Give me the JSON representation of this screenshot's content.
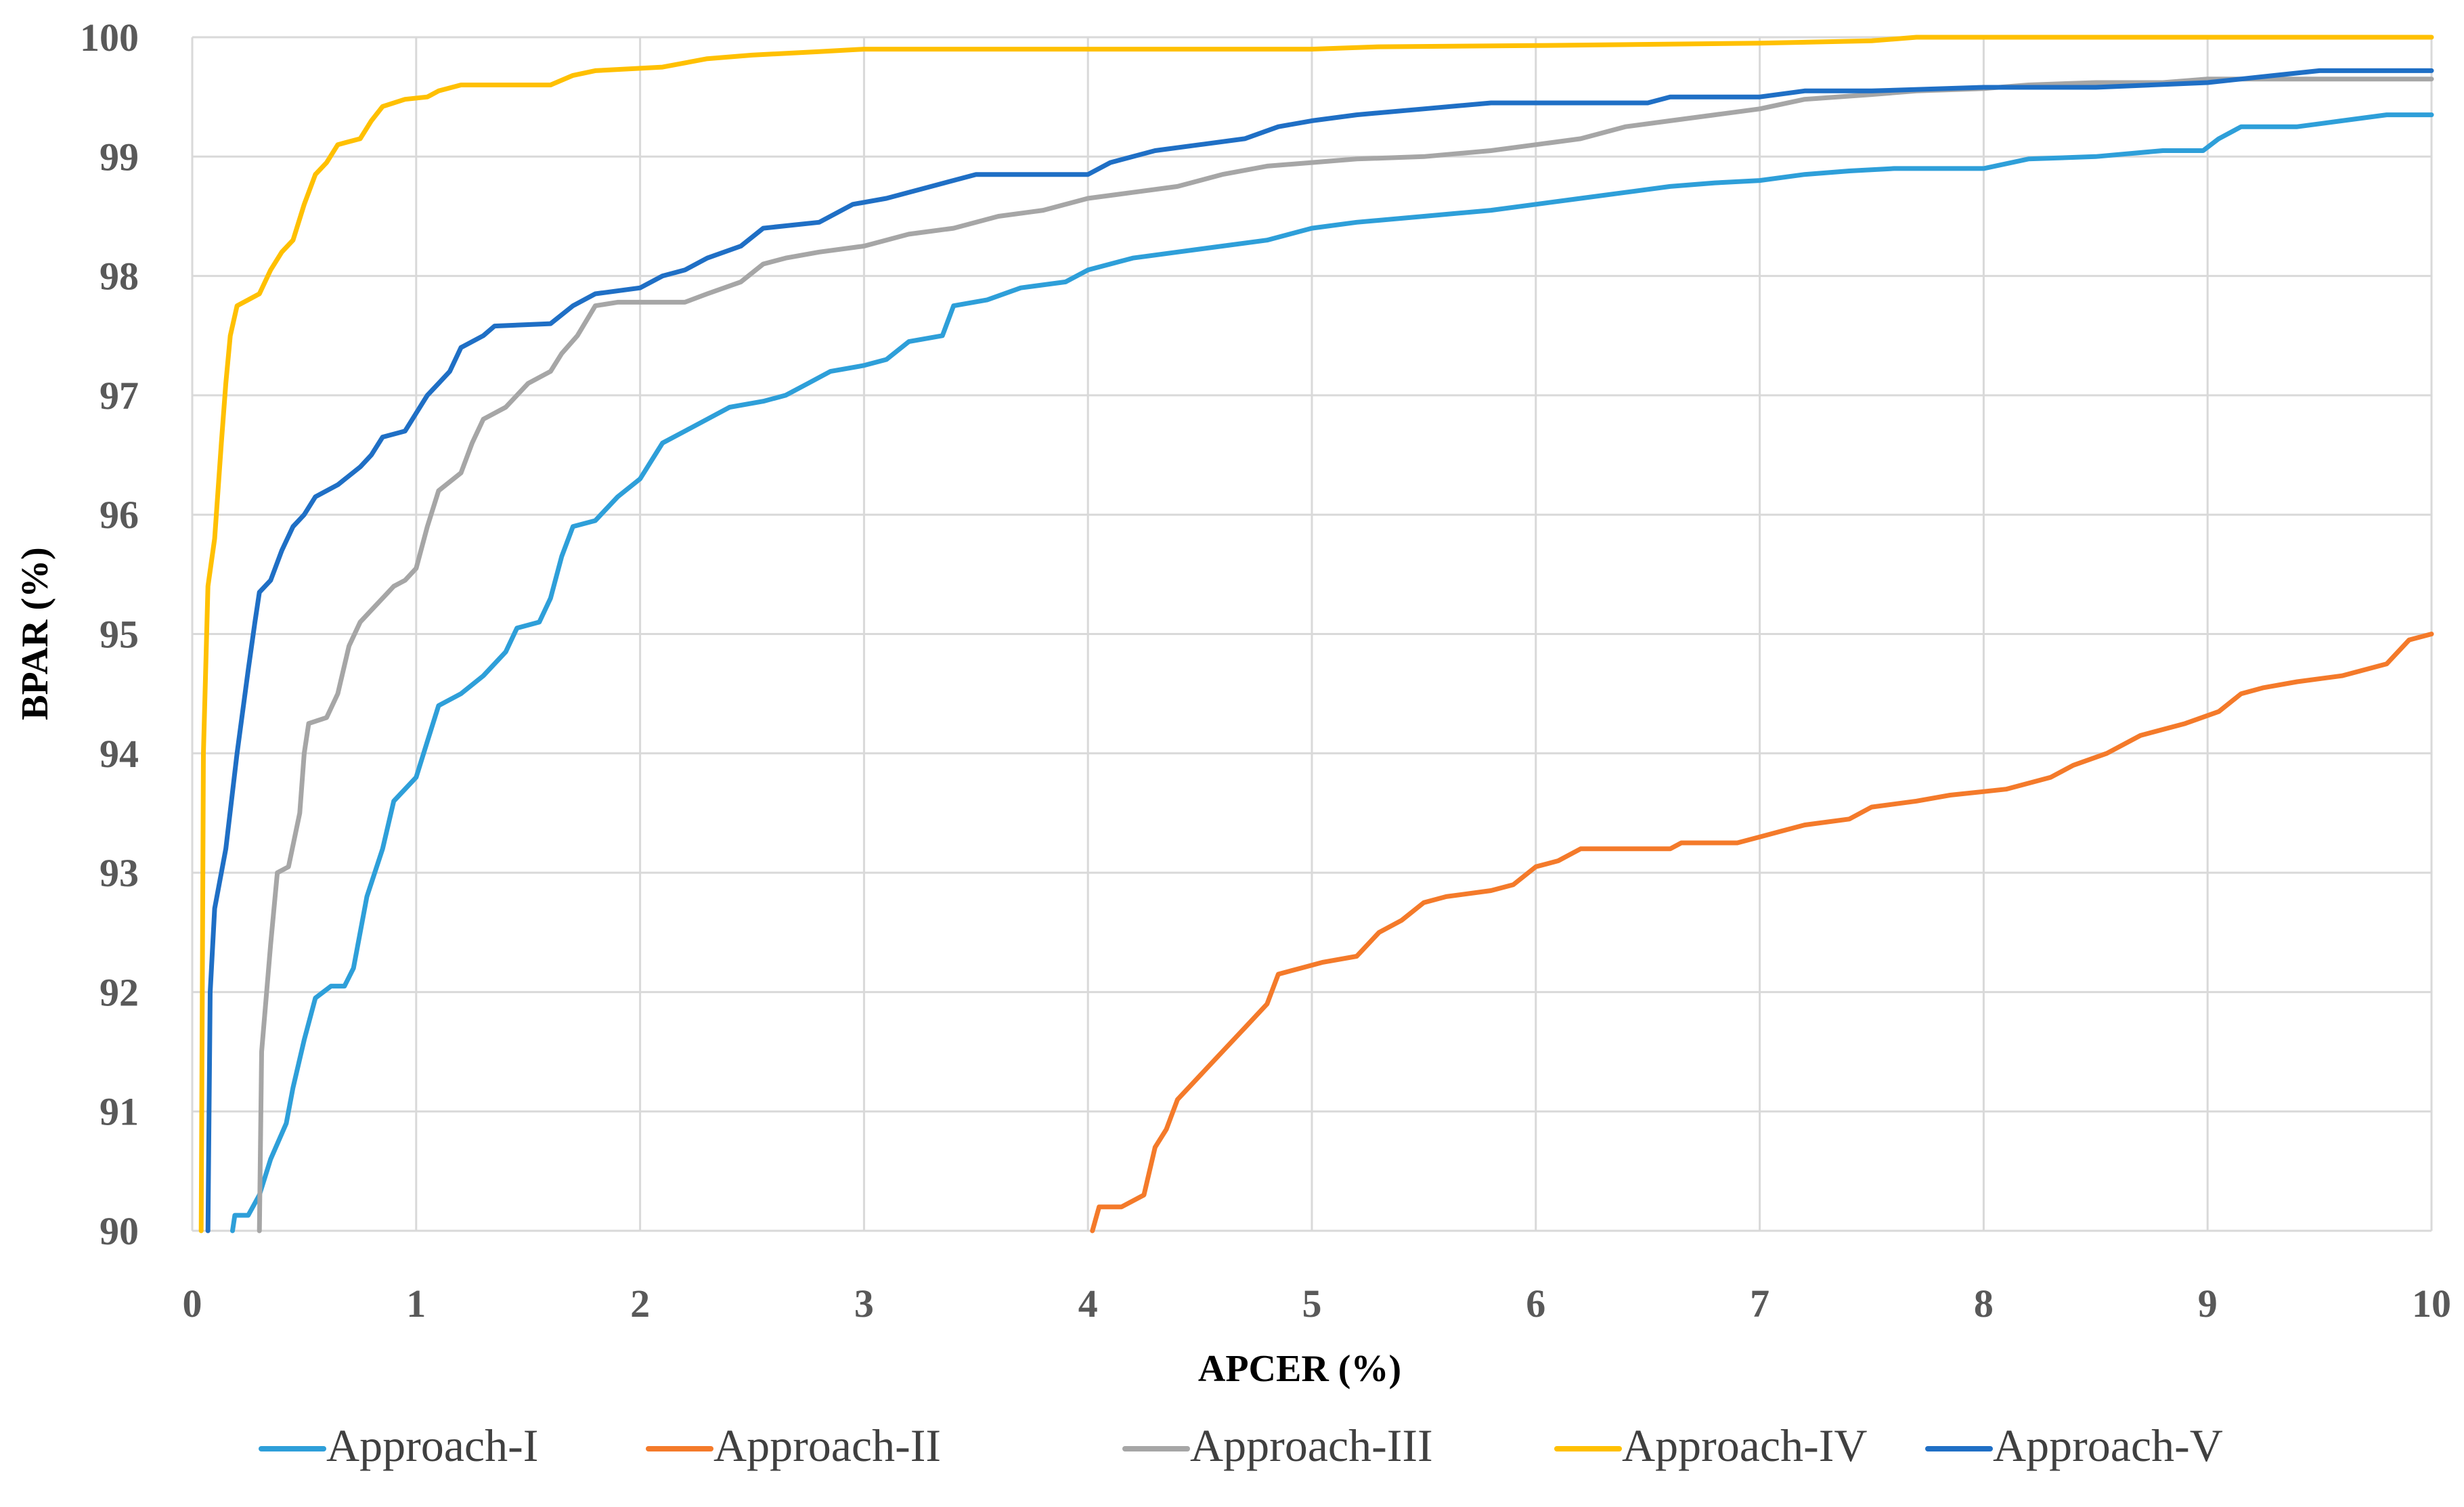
{
  "chart_data": {
    "type": "line",
    "title": "",
    "xlabel": "APCER (%)",
    "ylabel": "BPAR (%)",
    "xlim": [
      0,
      10
    ],
    "ylim": [
      90,
      100
    ],
    "grid": true,
    "legend_position": "bottom",
    "x_ticks": [
      "0",
      "1",
      "2",
      "3",
      "4",
      "5",
      "6",
      "7",
      "8",
      "9",
      "10"
    ],
    "y_ticks": [
      "90",
      "91",
      "92",
      "93",
      "94",
      "95",
      "96",
      "97",
      "98",
      "99",
      "100"
    ],
    "series": [
      {
        "name": "Approach-I",
        "color": "#2E9FD9",
        "points": [
          [
            0.18,
            90.0
          ],
          [
            0.19,
            90.13
          ],
          [
            0.25,
            90.13
          ],
          [
            0.3,
            90.3
          ],
          [
            0.35,
            90.6
          ],
          [
            0.42,
            90.9
          ],
          [
            0.45,
            91.2
          ],
          [
            0.5,
            91.6
          ],
          [
            0.55,
            91.95
          ],
          [
            0.62,
            92.05
          ],
          [
            0.68,
            92.05
          ],
          [
            0.72,
            92.2
          ],
          [
            0.78,
            92.8
          ],
          [
            0.85,
            93.2
          ],
          [
            0.9,
            93.6
          ],
          [
            0.95,
            93.7
          ],
          [
            1.0,
            93.8
          ],
          [
            1.05,
            94.1
          ],
          [
            1.1,
            94.4
          ],
          [
            1.2,
            94.5
          ],
          [
            1.3,
            94.65
          ],
          [
            1.4,
            94.85
          ],
          [
            1.45,
            95.05
          ],
          [
            1.55,
            95.1
          ],
          [
            1.6,
            95.3
          ],
          [
            1.65,
            95.65
          ],
          [
            1.7,
            95.9
          ],
          [
            1.8,
            95.95
          ],
          [
            1.9,
            96.15
          ],
          [
            2.0,
            96.3
          ],
          [
            2.05,
            96.45
          ],
          [
            2.1,
            96.6
          ],
          [
            2.2,
            96.7
          ],
          [
            2.3,
            96.8
          ],
          [
            2.4,
            96.9
          ],
          [
            2.55,
            96.95
          ],
          [
            2.65,
            97.0
          ],
          [
            2.75,
            97.1
          ],
          [
            2.85,
            97.2
          ],
          [
            3.0,
            97.25
          ],
          [
            3.1,
            97.3
          ],
          [
            3.2,
            97.45
          ],
          [
            3.35,
            97.5
          ],
          [
            3.4,
            97.75
          ],
          [
            3.55,
            97.8
          ],
          [
            3.7,
            97.9
          ],
          [
            3.9,
            97.95
          ],
          [
            4.0,
            98.05
          ],
          [
            4.2,
            98.15
          ],
          [
            4.4,
            98.2
          ],
          [
            4.6,
            98.25
          ],
          [
            4.8,
            98.3
          ],
          [
            5.0,
            98.4
          ],
          [
            5.2,
            98.45
          ],
          [
            5.5,
            98.5
          ],
          [
            5.8,
            98.55
          ],
          [
            6.0,
            98.6
          ],
          [
            6.2,
            98.65
          ],
          [
            6.4,
            98.7
          ],
          [
            6.6,
            98.75
          ],
          [
            6.8,
            98.78
          ],
          [
            7.0,
            98.8
          ],
          [
            7.2,
            98.85
          ],
          [
            7.4,
            98.88
          ],
          [
            7.6,
            98.9
          ],
          [
            8.0,
            98.9
          ],
          [
            8.2,
            98.98
          ],
          [
            8.5,
            99.0
          ],
          [
            8.8,
            99.05
          ],
          [
            8.98,
            99.05
          ],
          [
            9.05,
            99.15
          ],
          [
            9.15,
            99.25
          ],
          [
            9.4,
            99.25
          ],
          [
            9.6,
            99.3
          ],
          [
            9.8,
            99.35
          ],
          [
            10.0,
            99.35
          ]
        ]
      },
      {
        "name": "Approach-II",
        "color": "#F47A2A",
        "points": [
          [
            4.02,
            90.0
          ],
          [
            4.05,
            90.2
          ],
          [
            4.15,
            90.2
          ],
          [
            4.25,
            90.3
          ],
          [
            4.3,
            90.7
          ],
          [
            4.35,
            90.85
          ],
          [
            4.4,
            91.1
          ],
          [
            4.5,
            91.3
          ],
          [
            4.6,
            91.5
          ],
          [
            4.7,
            91.7
          ],
          [
            4.8,
            91.9
          ],
          [
            4.85,
            92.15
          ],
          [
            4.95,
            92.2
          ],
          [
            5.05,
            92.25
          ],
          [
            5.2,
            92.3
          ],
          [
            5.3,
            92.5
          ],
          [
            5.4,
            92.6
          ],
          [
            5.5,
            92.75
          ],
          [
            5.6,
            92.8
          ],
          [
            5.8,
            92.85
          ],
          [
            5.9,
            92.9
          ],
          [
            6.0,
            93.05
          ],
          [
            6.1,
            93.1
          ],
          [
            6.2,
            93.2
          ],
          [
            6.6,
            93.2
          ],
          [
            6.65,
            93.25
          ],
          [
            6.9,
            93.25
          ],
          [
            7.0,
            93.3
          ],
          [
            7.1,
            93.35
          ],
          [
            7.2,
            93.4
          ],
          [
            7.4,
            93.45
          ],
          [
            7.5,
            93.55
          ],
          [
            7.7,
            93.6
          ],
          [
            7.85,
            93.65
          ],
          [
            8.1,
            93.7
          ],
          [
            8.3,
            93.8
          ],
          [
            8.4,
            93.9
          ],
          [
            8.55,
            94.0
          ],
          [
            8.7,
            94.15
          ],
          [
            8.9,
            94.25
          ],
          [
            9.05,
            94.35
          ],
          [
            9.15,
            94.5
          ],
          [
            9.25,
            94.55
          ],
          [
            9.4,
            94.6
          ],
          [
            9.6,
            94.65
          ],
          [
            9.8,
            94.75
          ],
          [
            9.9,
            94.95
          ],
          [
            10.0,
            95.0
          ]
        ]
      },
      {
        "name": "Approach-III",
        "color": "#A6A6A6",
        "points": [
          [
            0.3,
            90.0
          ],
          [
            0.31,
            91.5
          ],
          [
            0.35,
            92.4
          ],
          [
            0.38,
            93.0
          ],
          [
            0.43,
            93.05
          ],
          [
            0.48,
            93.5
          ],
          [
            0.5,
            94.0
          ],
          [
            0.52,
            94.25
          ],
          [
            0.6,
            94.3
          ],
          [
            0.65,
            94.5
          ],
          [
            0.7,
            94.9
          ],
          [
            0.75,
            95.1
          ],
          [
            0.8,
            95.2
          ],
          [
            0.85,
            95.3
          ],
          [
            0.9,
            95.4
          ],
          [
            0.95,
            95.45
          ],
          [
            1.0,
            95.55
          ],
          [
            1.05,
            95.9
          ],
          [
            1.1,
            96.2
          ],
          [
            1.2,
            96.35
          ],
          [
            1.25,
            96.6
          ],
          [
            1.3,
            96.8
          ],
          [
            1.4,
            96.9
          ],
          [
            1.5,
            97.1
          ],
          [
            1.6,
            97.2
          ],
          [
            1.65,
            97.35
          ],
          [
            1.72,
            97.5
          ],
          [
            1.8,
            97.75
          ],
          [
            1.9,
            97.78
          ],
          [
            2.2,
            97.78
          ],
          [
            2.3,
            97.85
          ],
          [
            2.45,
            97.95
          ],
          [
            2.55,
            98.1
          ],
          [
            2.65,
            98.15
          ],
          [
            2.8,
            98.2
          ],
          [
            3.0,
            98.25
          ],
          [
            3.2,
            98.35
          ],
          [
            3.4,
            98.4
          ],
          [
            3.6,
            98.5
          ],
          [
            3.8,
            98.55
          ],
          [
            4.0,
            98.65
          ],
          [
            4.2,
            98.7
          ],
          [
            4.4,
            98.75
          ],
          [
            4.6,
            98.85
          ],
          [
            4.8,
            98.92
          ],
          [
            5.0,
            98.95
          ],
          [
            5.2,
            98.98
          ],
          [
            5.5,
            99.0
          ],
          [
            5.8,
            99.05
          ],
          [
            6.0,
            99.1
          ],
          [
            6.2,
            99.15
          ],
          [
            6.4,
            99.25
          ],
          [
            6.6,
            99.3
          ],
          [
            6.8,
            99.35
          ],
          [
            7.0,
            99.4
          ],
          [
            7.2,
            99.48
          ],
          [
            7.5,
            99.52
          ],
          [
            7.7,
            99.55
          ],
          [
            8.0,
            99.57
          ],
          [
            8.2,
            99.6
          ],
          [
            8.5,
            99.62
          ],
          [
            8.8,
            99.62
          ],
          [
            9.0,
            99.65
          ],
          [
            9.5,
            99.65
          ],
          [
            10.0,
            99.65
          ]
        ]
      },
      {
        "name": "Approach-IV",
        "color": "#FFC000",
        "points": [
          [
            0.04,
            90.0
          ],
          [
            0.05,
            94.0
          ],
          [
            0.07,
            95.4
          ],
          [
            0.1,
            95.8
          ],
          [
            0.13,
            96.6
          ],
          [
            0.15,
            97.1
          ],
          [
            0.17,
            97.5
          ],
          [
            0.2,
            97.75
          ],
          [
            0.25,
            97.8
          ],
          [
            0.3,
            97.85
          ],
          [
            0.35,
            98.05
          ],
          [
            0.4,
            98.2
          ],
          [
            0.45,
            98.3
          ],
          [
            0.5,
            98.6
          ],
          [
            0.55,
            98.85
          ],
          [
            0.6,
            98.95
          ],
          [
            0.65,
            99.1
          ],
          [
            0.75,
            99.15
          ],
          [
            0.8,
            99.3
          ],
          [
            0.85,
            99.42
          ],
          [
            0.95,
            99.48
          ],
          [
            1.05,
            99.5
          ],
          [
            1.1,
            99.55
          ],
          [
            1.2,
            99.6
          ],
          [
            1.6,
            99.6
          ],
          [
            1.7,
            99.68
          ],
          [
            1.8,
            99.72
          ],
          [
            2.1,
            99.75
          ],
          [
            2.3,
            99.82
          ],
          [
            2.5,
            99.85
          ],
          [
            2.8,
            99.88
          ],
          [
            3.0,
            99.9
          ],
          [
            4.0,
            99.9
          ],
          [
            5.0,
            99.9
          ],
          [
            5.3,
            99.92
          ],
          [
            6.0,
            99.93
          ],
          [
            7.0,
            99.95
          ],
          [
            7.5,
            99.97
          ],
          [
            7.7,
            100.0
          ],
          [
            10.0,
            100.0
          ]
        ]
      },
      {
        "name": "Approach-V",
        "color": "#1F6FC5",
        "points": [
          [
            0.07,
            90.0
          ],
          [
            0.08,
            92.0
          ],
          [
            0.1,
            92.7
          ],
          [
            0.15,
            93.2
          ],
          [
            0.2,
            94.0
          ],
          [
            0.25,
            94.7
          ],
          [
            0.28,
            95.1
          ],
          [
            0.3,
            95.35
          ],
          [
            0.35,
            95.45
          ],
          [
            0.4,
            95.7
          ],
          [
            0.45,
            95.9
          ],
          [
            0.5,
            96.0
          ],
          [
            0.55,
            96.15
          ],
          [
            0.65,
            96.25
          ],
          [
            0.75,
            96.4
          ],
          [
            0.8,
            96.5
          ],
          [
            0.85,
            96.65
          ],
          [
            0.95,
            96.7
          ],
          [
            1.0,
            96.85
          ],
          [
            1.05,
            97.0
          ],
          [
            1.1,
            97.1
          ],
          [
            1.15,
            97.2
          ],
          [
            1.2,
            97.4
          ],
          [
            1.3,
            97.5
          ],
          [
            1.35,
            97.58
          ],
          [
            1.6,
            97.6
          ],
          [
            1.7,
            97.75
          ],
          [
            1.8,
            97.85
          ],
          [
            2.0,
            97.9
          ],
          [
            2.1,
            98.0
          ],
          [
            2.2,
            98.05
          ],
          [
            2.3,
            98.15
          ],
          [
            2.45,
            98.25
          ],
          [
            2.55,
            98.4
          ],
          [
            2.8,
            98.45
          ],
          [
            2.95,
            98.6
          ],
          [
            3.1,
            98.65
          ],
          [
            3.3,
            98.75
          ],
          [
            3.5,
            98.85
          ],
          [
            4.0,
            98.85
          ],
          [
            4.1,
            98.95
          ],
          [
            4.3,
            99.05
          ],
          [
            4.5,
            99.1
          ],
          [
            4.7,
            99.15
          ],
          [
            4.85,
            99.25
          ],
          [
            5.0,
            99.3
          ],
          [
            5.2,
            99.35
          ],
          [
            5.5,
            99.4
          ],
          [
            5.8,
            99.45
          ],
          [
            6.5,
            99.45
          ],
          [
            6.6,
            99.5
          ],
          [
            7.0,
            99.5
          ],
          [
            7.2,
            99.55
          ],
          [
            7.5,
            99.55
          ],
          [
            8.0,
            99.58
          ],
          [
            8.5,
            99.58
          ],
          [
            9.0,
            99.62
          ],
          [
            9.3,
            99.68
          ],
          [
            9.5,
            99.72
          ],
          [
            10.0,
            99.72
          ]
        ]
      }
    ]
  }
}
